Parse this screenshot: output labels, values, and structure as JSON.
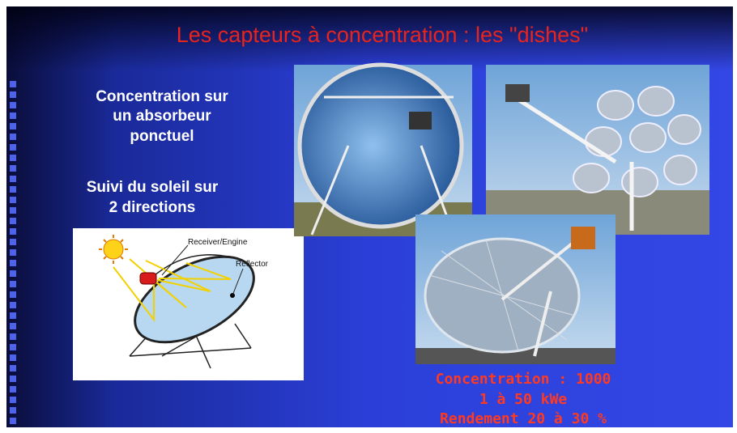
{
  "title": "Les capteurs à concentration : les \"dishes\"",
  "points": [
    {
      "lines": [
        "Concentration sur",
        "un absorbeur",
        "ponctuel"
      ]
    },
    {
      "lines": [
        "Suivi du soleil sur",
        "2 directions"
      ]
    }
  ],
  "diagram": {
    "labels": [
      "Receiver/Engine",
      "Reflector"
    ]
  },
  "specs": [
    "Concentration : 1000",
    "1 à 50 kWe",
    "Rendement 20 à 30 %"
  ]
}
